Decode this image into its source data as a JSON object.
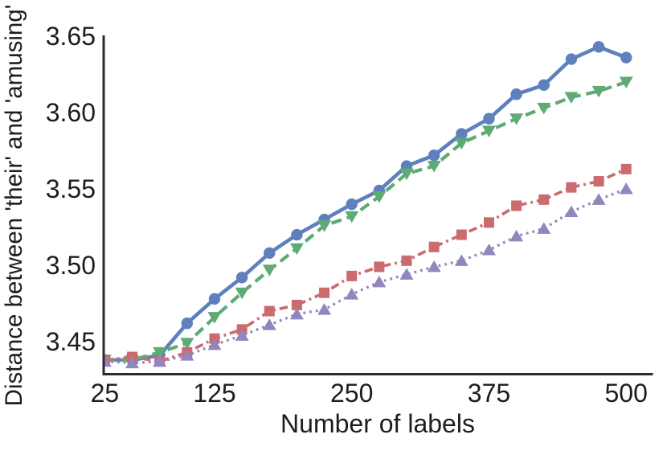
{
  "figure": {
    "background": "#ffffff",
    "axis_color": "#2b2b2b",
    "text_color": "#1d1d1d"
  },
  "chart_data": {
    "type": "line",
    "title": "",
    "xlabel": "Number of labels",
    "ylabel": "Distance between 'their' and 'amusing'",
    "x": [
      25,
      50,
      75,
      100,
      125,
      150,
      175,
      200,
      225,
      250,
      275,
      300,
      325,
      350,
      375,
      400,
      425,
      450,
      475,
      500
    ],
    "series": [
      {
        "name": "blue-solid-circles",
        "color": "#5E80BD",
        "linestyle": "solid",
        "marker": "circle",
        "values": [
          3.438,
          3.438,
          3.441,
          3.462,
          3.478,
          3.492,
          3.508,
          3.52,
          3.53,
          3.54,
          3.549,
          3.565,
          3.572,
          3.586,
          3.596,
          3.612,
          3.618,
          3.635,
          3.643,
          3.636
        ]
      },
      {
        "name": "green-dashed-triangles-down",
        "color": "#5EAB76",
        "linestyle": "dashed",
        "marker": "triangle-down",
        "values": [
          3.438,
          3.438,
          3.443,
          3.449,
          3.466,
          3.482,
          3.497,
          3.511,
          3.526,
          3.532,
          3.545,
          3.56,
          3.565,
          3.58,
          3.588,
          3.596,
          3.603,
          3.61,
          3.614,
          3.62
        ]
      },
      {
        "name": "red-dashdot-squares",
        "color": "#CB6A6F",
        "linestyle": "dashdot",
        "marker": "square",
        "values": [
          3.438,
          3.44,
          3.437,
          3.443,
          3.452,
          3.458,
          3.47,
          3.474,
          3.482,
          3.493,
          3.499,
          3.503,
          3.512,
          3.52,
          3.528,
          3.539,
          3.543,
          3.551,
          3.555,
          3.563
        ]
      },
      {
        "name": "purple-dotted-triangles-up",
        "color": "#9186BE",
        "linestyle": "dotted",
        "marker": "triangle-up",
        "values": [
          3.437,
          3.436,
          3.437,
          3.441,
          3.448,
          3.454,
          3.461,
          3.468,
          3.471,
          3.481,
          3.489,
          3.494,
          3.499,
          3.503,
          3.51,
          3.519,
          3.524,
          3.535,
          3.543,
          3.55
        ]
      }
    ],
    "xtick_values": [
      25,
      125,
      250,
      375,
      500
    ],
    "xtick_labels": [
      "25",
      "125",
      "250",
      "375",
      "500"
    ],
    "ytick_values": [
      3.45,
      3.5,
      3.55,
      3.6,
      3.65
    ],
    "ytick_labels": [
      "3.45",
      "3.50",
      "3.55",
      "3.60",
      "3.65"
    ],
    "xlim": [
      24,
      524
    ],
    "ylim": [
      3.4287,
      3.6537
    ],
    "grid": false,
    "legend": null
  }
}
